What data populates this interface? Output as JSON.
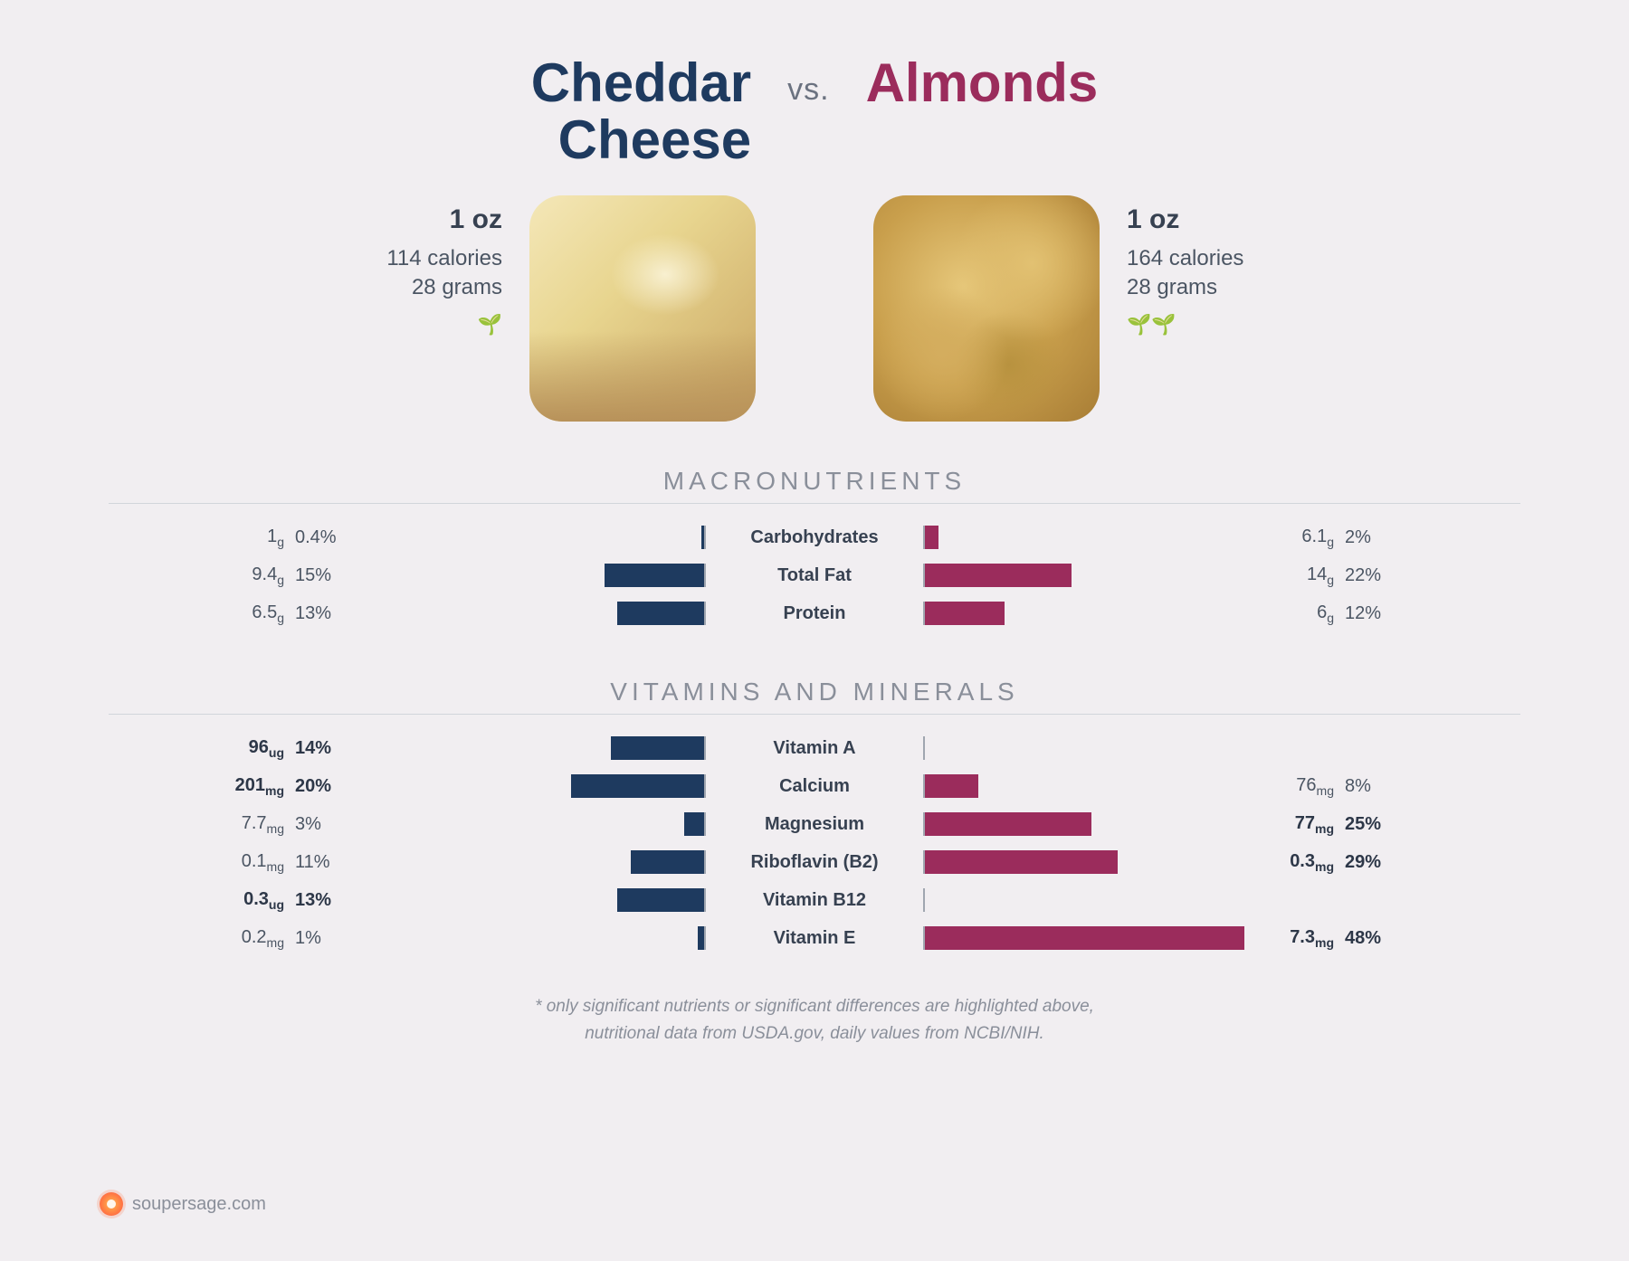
{
  "colors": {
    "left": "#1e3a5f",
    "right": "#9b2c5c",
    "bg": "#f1eef1",
    "text": "#4a5568",
    "grid": "#d1d5db"
  },
  "vs": "vs.",
  "left": {
    "title_line1": "Cheddar",
    "title_line2": "Cheese",
    "serving": "1 oz",
    "calories": "114 calories",
    "grams": "28 grams",
    "leaves": "🌱"
  },
  "right": {
    "title": "Almonds",
    "serving": "1 oz",
    "calories": "164 calories",
    "grams": "28 grams",
    "leaves": "🌱🌱"
  },
  "macros": {
    "title": "MACRONUTRIENTS",
    "max_pct_scale": 50,
    "rows": [
      {
        "label": "Carbohydrates",
        "l_amt": "1g",
        "l_pct": "0.4%",
        "l_val": 0.4,
        "l_bold": false,
        "r_amt": "6.1g",
        "r_pct": "2%",
        "r_val": 2,
        "r_bold": false
      },
      {
        "label": "Total Fat",
        "l_amt": "9.4g",
        "l_pct": "15%",
        "l_val": 15,
        "l_bold": false,
        "r_amt": "14g",
        "r_pct": "22%",
        "r_val": 22,
        "r_bold": false
      },
      {
        "label": "Protein",
        "l_amt": "6.5g",
        "l_pct": "13%",
        "l_val": 13,
        "l_bold": false,
        "r_amt": "6g",
        "r_pct": "12%",
        "r_val": 12,
        "r_bold": false
      }
    ]
  },
  "vitamins": {
    "title": "VITAMINS AND MINERALS",
    "max_pct_scale": 50,
    "rows": [
      {
        "label": "Vitamin A",
        "l_amt": "96ug",
        "l_pct": "14%",
        "l_val": 14,
        "l_bold": true,
        "r_amt": "",
        "r_pct": "",
        "r_val": 0,
        "r_bold": false
      },
      {
        "label": "Calcium",
        "l_amt": "201mg",
        "l_pct": "20%",
        "l_val": 20,
        "l_bold": true,
        "r_amt": "76mg",
        "r_pct": "8%",
        "r_val": 8,
        "r_bold": false
      },
      {
        "label": "Magnesium",
        "l_amt": "7.7mg",
        "l_pct": "3%",
        "l_val": 3,
        "l_bold": false,
        "r_amt": "77mg",
        "r_pct": "25%",
        "r_val": 25,
        "r_bold": true
      },
      {
        "label": "Riboflavin (B2)",
        "l_amt": "0.1mg",
        "l_pct": "11%",
        "l_val": 11,
        "l_bold": false,
        "r_amt": "0.3mg",
        "r_pct": "29%",
        "r_val": 29,
        "r_bold": true
      },
      {
        "label": "Vitamin B12",
        "l_amt": "0.3ug",
        "l_pct": "13%",
        "l_val": 13,
        "l_bold": true,
        "r_amt": "",
        "r_pct": "",
        "r_val": 0,
        "r_bold": false
      },
      {
        "label": "Vitamin E",
        "l_amt": "0.2mg",
        "l_pct": "1%",
        "l_val": 1,
        "l_bold": false,
        "r_amt": "7.3mg",
        "r_pct": "48%",
        "r_val": 48,
        "r_bold": true
      }
    ]
  },
  "footnote_line1": "* only significant nutrients or significant differences are highlighted above,",
  "footnote_line2": "nutritional data from USDA.gov, daily values from NCBI/NIH.",
  "footer": "soupersage.com"
}
